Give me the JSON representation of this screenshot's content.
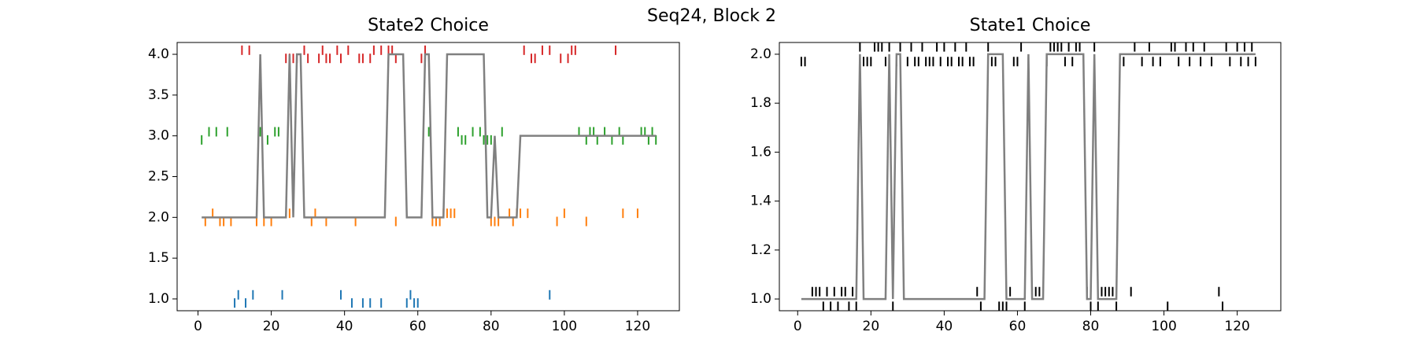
{
  "title": "Seq24, Block 2",
  "chart_data": [
    {
      "type": "line",
      "title": "State2 Choice",
      "xlim": [
        -5.7,
        131.4
      ],
      "ylim": [
        0.855,
        4.145
      ],
      "xticks": [
        0,
        20,
        40,
        60,
        80,
        100,
        120
      ],
      "yticks": [
        {
          "value": 1.0,
          "label": "1.0"
        },
        {
          "value": 1.5,
          "label": "1.5"
        },
        {
          "value": 2.0,
          "label": "2.0"
        },
        {
          "value": 2.5,
          "label": "2.5"
        },
        {
          "value": 3.0,
          "label": "3.0"
        },
        {
          "value": 3.5,
          "label": "3.5"
        },
        {
          "value": 4.0,
          "label": "4.0"
        }
      ],
      "series": [
        {
          "type": "scatter",
          "color": "#1f77b4",
          "x": [
            10,
            11,
            13,
            15,
            23,
            39,
            42,
            45,
            47,
            50,
            57,
            58,
            59,
            60,
            96
          ],
          "values": [
            0.95,
            1.05,
            0.95,
            1.05,
            1.05,
            1.05,
            0.95,
            0.95,
            0.95,
            0.95,
            0.95,
            1.05,
            0.95,
            0.95,
            1.05
          ]
        },
        {
          "type": "scatter",
          "color": "#ff7f0e",
          "x": [
            2,
            4,
            6,
            7,
            9,
            16,
            18,
            20,
            25,
            31,
            32,
            35,
            43,
            54,
            64,
            65,
            66,
            67,
            68,
            69,
            70,
            80,
            81,
            82,
            85,
            86,
            87,
            88,
            90,
            98,
            100,
            106,
            116,
            120
          ],
          "values": [
            1.95,
            2.05,
            1.95,
            1.95,
            1.95,
            1.95,
            1.95,
            1.95,
            2.05,
            1.95,
            2.05,
            1.95,
            1.95,
            1.95,
            1.95,
            1.95,
            1.95,
            2.05,
            2.05,
            2.05,
            2.05,
            1.95,
            1.95,
            1.95,
            2.05,
            1.95,
            2.05,
            2.05,
            2.05,
            1.95,
            2.05,
            1.95,
            2.05,
            2.05
          ]
        },
        {
          "type": "scatter",
          "color": "#2ca02c",
          "x": [
            1,
            3,
            5,
            8,
            17,
            19,
            21,
            22,
            63,
            71,
            72,
            73,
            75,
            77,
            78,
            79,
            80,
            83,
            104,
            106,
            107,
            108,
            109,
            111,
            113,
            115,
            116,
            121,
            122,
            123,
            124,
            125
          ],
          "values": [
            2.95,
            3.05,
            3.05,
            3.05,
            3.05,
            2.95,
            3.05,
            3.05,
            3.05,
            3.05,
            2.95,
            2.95,
            3.05,
            3.05,
            2.95,
            2.95,
            2.95,
            3.05,
            3.05,
            2.95,
            3.05,
            3.05,
            2.95,
            3.05,
            2.95,
            3.05,
            2.95,
            3.05,
            3.05,
            2.95,
            3.05,
            2.95
          ]
        },
        {
          "type": "scatter",
          "color": "#d62728",
          "x": [
            12,
            14,
            24,
            25,
            26,
            27,
            29,
            30,
            33,
            34,
            35,
            36,
            38,
            39,
            41,
            44,
            45,
            47,
            48,
            50,
            52,
            53,
            54,
            61,
            62,
            89,
            91,
            92,
            94,
            96,
            99,
            101,
            102,
            103,
            114
          ],
          "values": [
            4.05,
            4.05,
            3.95,
            3.95,
            3.95,
            3.95,
            4.05,
            3.95,
            3.95,
            4.05,
            3.95,
            3.95,
            4.05,
            3.95,
            4.05,
            3.95,
            3.95,
            3.95,
            4.05,
            4.05,
            4.05,
            4.05,
            3.95,
            3.95,
            4.05,
            4.05,
            3.95,
            3.95,
            4.05,
            4.05,
            3.95,
            3.95,
            4.05,
            4.05,
            4.05
          ]
        },
        {
          "type": "line",
          "color": "#808080",
          "x": [
            1,
            16,
            17,
            18,
            24,
            25,
            26,
            27,
            28,
            29,
            51,
            52,
            56,
            57,
            61,
            62,
            63,
            64,
            67,
            68,
            78,
            79,
            80,
            81,
            82,
            87,
            88,
            125
          ],
          "values": [
            2,
            2,
            4,
            2,
            2,
            4,
            2,
            4,
            4,
            2,
            2,
            4,
            4,
            2,
            2,
            4,
            4,
            2,
            2,
            4,
            4,
            2,
            2,
            3,
            2,
            2,
            3,
            3
          ]
        }
      ]
    },
    {
      "type": "line",
      "title": "State1 Choice",
      "xlim": [
        -5,
        131.9
      ],
      "ylim": [
        0.952,
        2.048
      ],
      "xticks": [
        0,
        20,
        40,
        60,
        80,
        100,
        120
      ],
      "yticks": [
        {
          "value": 1.0,
          "label": "1.0"
        },
        {
          "value": 1.2,
          "label": "1.2"
        },
        {
          "value": 1.4,
          "label": "1.4"
        },
        {
          "value": 1.6,
          "label": "1.6"
        },
        {
          "value": 1.8,
          "label": "1.8"
        },
        {
          "value": 2.0,
          "label": "2.0"
        }
      ],
      "series": [
        {
          "type": "scatter",
          "color": "#000000",
          "x": [
            1,
            2,
            4,
            5,
            6,
            7,
            8,
            9,
            10,
            11,
            12,
            13,
            14,
            15,
            16,
            17,
            18,
            19,
            20,
            21,
            22,
            23,
            24,
            25,
            26,
            27,
            28,
            30,
            31,
            32,
            33,
            34,
            35,
            36,
            37,
            38,
            39,
            40,
            41,
            42,
            43,
            44,
            45,
            46,
            47,
            48,
            49,
            50,
            52,
            53,
            54,
            55,
            56,
            57,
            58,
            59,
            60,
            61,
            62,
            63,
            64,
            65,
            66,
            67,
            68,
            69,
            70,
            71,
            72,
            73,
            74,
            75,
            76,
            77,
            79,
            80,
            81,
            82,
            83,
            84,
            85,
            86,
            87,
            89,
            91,
            92,
            94,
            96,
            97,
            99,
            101,
            102,
            103,
            104,
            106,
            107,
            108,
            110,
            111,
            113,
            115,
            116,
            117,
            118,
            120,
            121,
            122,
            123,
            124,
            125
          ],
          "values": [
            1.97,
            1.97,
            1.03,
            1.03,
            1.03,
            0.97,
            1.03,
            0.97,
            1.03,
            0.97,
            1.03,
            1.03,
            0.97,
            1.03,
            0.97,
            2.03,
            1.97,
            1.97,
            1.97,
            2.03,
            2.03,
            2.03,
            1.97,
            2.03,
            0.97,
            1.97,
            2.03,
            1.97,
            2.03,
            1.97,
            1.97,
            2.03,
            1.97,
            1.97,
            1.97,
            2.03,
            1.97,
            2.03,
            1.97,
            1.97,
            2.03,
            1.97,
            1.97,
            2.03,
            1.97,
            1.97,
            1.03,
            0.97,
            2.03,
            1.97,
            1.97,
            0.97,
            0.97,
            0.97,
            1.03,
            1.97,
            1.97,
            2.03,
            0.97,
            1.97,
            1.03,
            1.03,
            1.03,
            1.03,
            1.97,
            2.03,
            2.03,
            2.03,
            2.03,
            1.97,
            2.03,
            1.97,
            2.03,
            2.03,
            1.03,
            0.97,
            2.03,
            0.97,
            1.03,
            1.03,
            1.03,
            1.03,
            0.97,
            1.97,
            1.03,
            2.03,
            1.97,
            2.03,
            1.97,
            1.97,
            0.97,
            2.03,
            2.03,
            1.97,
            2.03,
            1.97,
            2.03,
            1.97,
            2.03,
            1.97,
            1.03,
            0.97,
            2.03,
            1.97,
            2.03,
            1.97,
            2.03,
            1.97,
            2.03,
            1.97
          ]
        },
        {
          "type": "line",
          "color": "#808080",
          "x": [
            1,
            16,
            17,
            18,
            24,
            25,
            26,
            27,
            28,
            29,
            51,
            52,
            56,
            57,
            62,
            63,
            64,
            67,
            68,
            78,
            79,
            80,
            81,
            82,
            87,
            88,
            125
          ],
          "values": [
            1,
            1,
            2,
            1,
            1,
            2,
            1,
            2,
            2,
            1,
            1,
            2,
            2,
            1,
            1,
            2,
            1,
            1,
            2,
            2,
            1,
            1,
            2,
            1,
            1,
            2,
            2
          ]
        }
      ]
    }
  ]
}
